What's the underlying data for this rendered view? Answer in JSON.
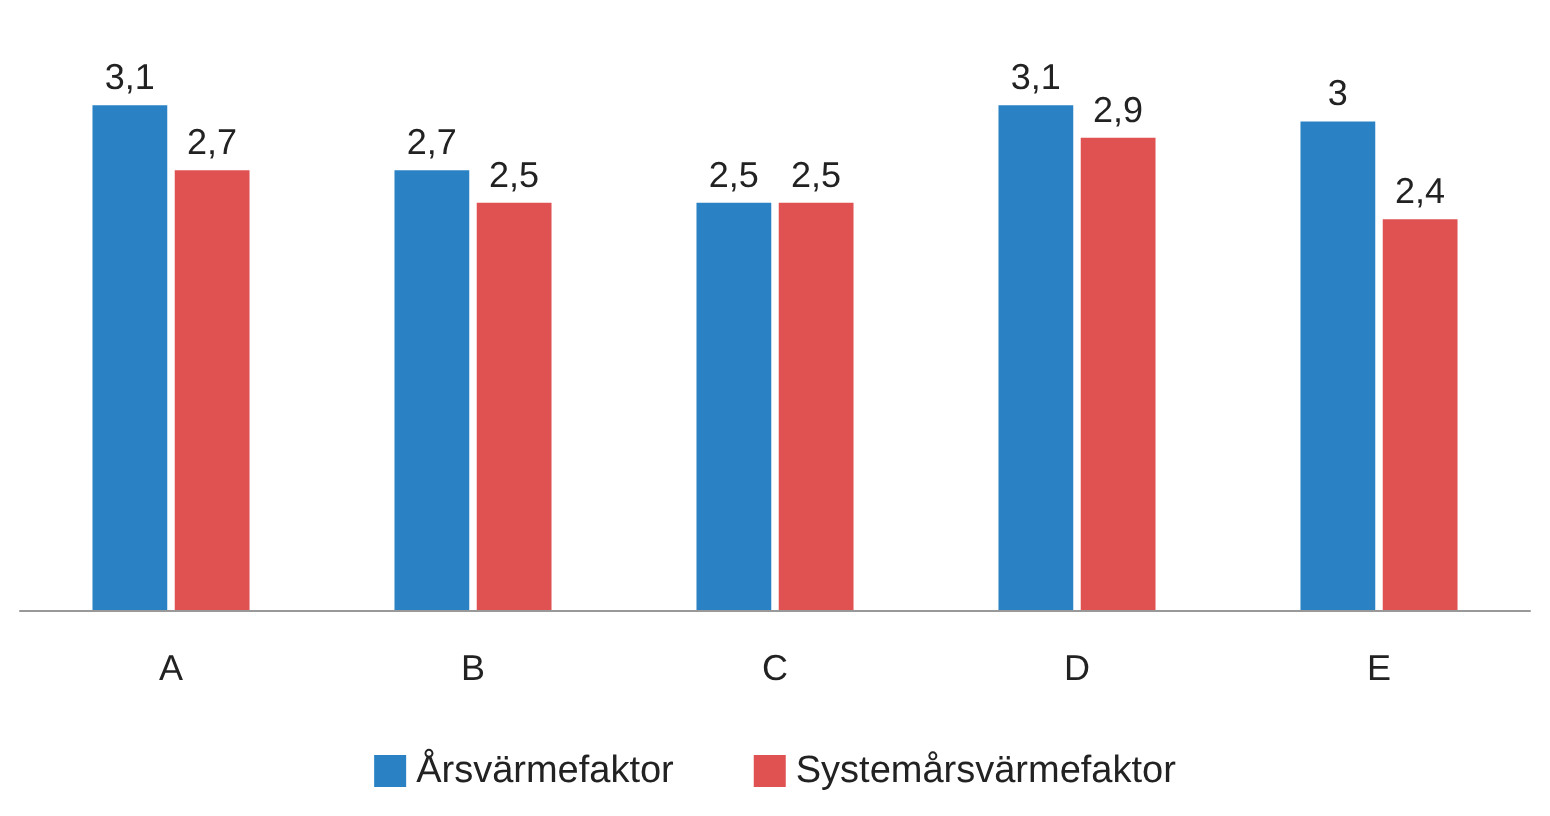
{
  "chart_data": {
    "type": "bar",
    "categories": [
      "A",
      "B",
      "C",
      "D",
      "E"
    ],
    "series": [
      {
        "name": "Årsvärmefaktor",
        "color": "#2a82c4",
        "values": [
          3.1,
          2.7,
          2.5,
          3.1,
          3.0
        ],
        "value_labels": [
          "3,1",
          "2,7",
          "2,5",
          "3,1",
          "3"
        ]
      },
      {
        "name": "Systemårsvärmefaktor",
        "color": "#e05252",
        "values": [
          2.7,
          2.5,
          2.5,
          2.9,
          2.4
        ],
        "value_labels": [
          "2,7",
          "2,5",
          "2,5",
          "2,9",
          "2,4"
        ]
      }
    ],
    "legend": "bottom"
  }
}
